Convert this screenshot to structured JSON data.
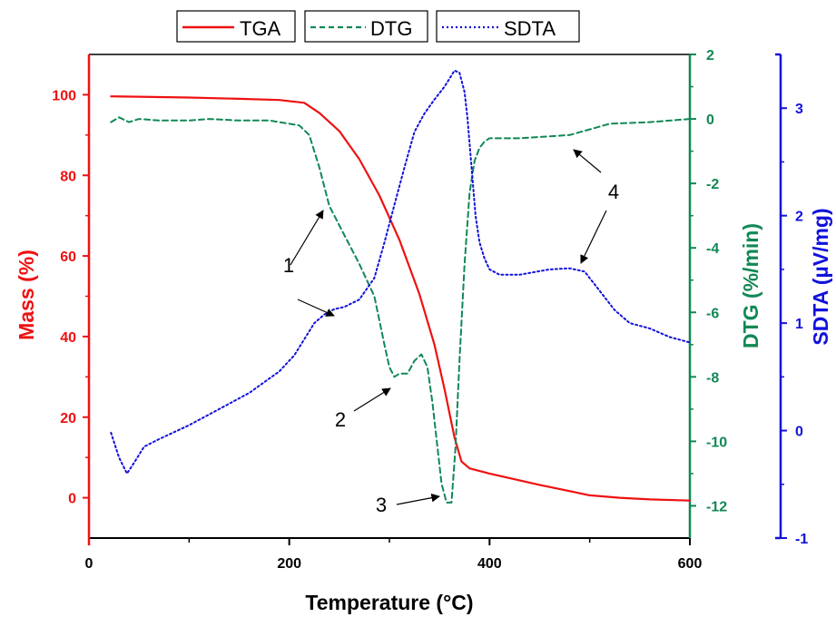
{
  "chart_data": {
    "type": "line",
    "x_axis": {
      "label": "Temperature (°C)",
      "range": [
        0,
        600
      ],
      "ticks": [
        0,
        200,
        400,
        600
      ]
    },
    "axes": {
      "mass": {
        "label": "Mass (%)",
        "range": [
          -10,
          110
        ],
        "ticks": [
          0,
          20,
          40,
          60,
          80,
          100
        ],
        "color": "#ee1111",
        "position": "left"
      },
      "dtg": {
        "label": "DTG (%/min)",
        "range": [
          -13,
          2
        ],
        "ticks": [
          -12,
          -10,
          -8,
          -6,
          -4,
          -2,
          0,
          2
        ],
        "color": "#118855",
        "position": "right"
      },
      "sdta": {
        "label": "SDTA (µV/mg)",
        "range": [
          -1,
          3.5
        ],
        "ticks": [
          -1,
          0,
          1,
          2,
          3
        ],
        "color": "#1111dd",
        "position": "right-outer"
      }
    },
    "legend": {
      "placement": "top",
      "entries": [
        {
          "name": "TGA",
          "style": "solid",
          "color": "#ee1111"
        },
        {
          "name": "DTG",
          "style": "dashed",
          "color": "#118855"
        },
        {
          "name": "SDTA",
          "style": "dotted",
          "color": "#1111dd"
        }
      ]
    },
    "series": [
      {
        "name": "TGA",
        "axis": "mass",
        "x": [
          22,
          50,
          100,
          150,
          190,
          215,
          230,
          250,
          270,
          290,
          310,
          330,
          345,
          355,
          365,
          372,
          380,
          400,
          450,
          500,
          530,
          560,
          600
        ],
        "y": [
          99.6,
          99.5,
          99.3,
          99.0,
          98.7,
          98.0,
          95.5,
          91.0,
          84.0,
          75.0,
          64.0,
          50.5,
          38.0,
          27.0,
          15.0,
          9.0,
          7.3,
          6.0,
          3.2,
          0.6,
          0.0,
          -0.4,
          -0.7
        ]
      },
      {
        "name": "DTG",
        "axis": "dtg",
        "x": [
          22,
          30,
          40,
          50,
          70,
          100,
          120,
          150,
          180,
          200,
          210,
          220,
          230,
          240,
          255,
          270,
          285,
          295,
          300,
          305,
          310,
          318,
          325,
          332,
          338,
          343,
          348,
          352,
          357,
          362,
          366,
          370,
          375,
          380,
          385,
          390,
          395,
          400,
          430,
          480,
          520,
          560,
          600
        ],
        "y": [
          -0.1,
          0.05,
          -0.1,
          0.0,
          -0.05,
          -0.05,
          0.0,
          -0.05,
          -0.05,
          -0.15,
          -0.2,
          -0.5,
          -1.5,
          -2.7,
          -3.6,
          -4.5,
          -5.5,
          -7.0,
          -7.7,
          -8.0,
          -7.9,
          -7.9,
          -7.5,
          -7.3,
          -7.7,
          -8.8,
          -10.2,
          -11.3,
          -11.9,
          -11.9,
          -10.2,
          -7.5,
          -4.5,
          -2.3,
          -1.3,
          -0.9,
          -0.7,
          -0.6,
          -0.6,
          -0.5,
          -0.15,
          -0.1,
          0.0
        ]
      },
      {
        "name": "SDTA",
        "axis": "sdta",
        "x": [
          22,
          30,
          38,
          45,
          55,
          70,
          100,
          130,
          160,
          190,
          205,
          215,
          225,
          235,
          245,
          255,
          270,
          285,
          295,
          305,
          315,
          325,
          335,
          345,
          355,
          365,
          370,
          375,
          378,
          382,
          386,
          390,
          395,
          400,
          410,
          430,
          460,
          480,
          495,
          510,
          525,
          540,
          560,
          580,
          600
        ],
        "y": [
          -0.02,
          -0.25,
          -0.4,
          -0.3,
          -0.15,
          -0.08,
          0.05,
          0.2,
          0.35,
          0.55,
          0.7,
          0.85,
          1.0,
          1.08,
          1.13,
          1.15,
          1.22,
          1.42,
          1.75,
          2.1,
          2.45,
          2.78,
          2.95,
          3.08,
          3.2,
          3.35,
          3.33,
          3.15,
          2.9,
          2.45,
          2.0,
          1.75,
          1.6,
          1.5,
          1.45,
          1.45,
          1.5,
          1.51,
          1.48,
          1.3,
          1.12,
          1.0,
          0.95,
          0.87,
          0.82
        ]
      }
    ],
    "annotations": [
      {
        "text": "1"
      },
      {
        "text": "2"
      },
      {
        "text": "3"
      },
      {
        "text": "4"
      }
    ]
  }
}
